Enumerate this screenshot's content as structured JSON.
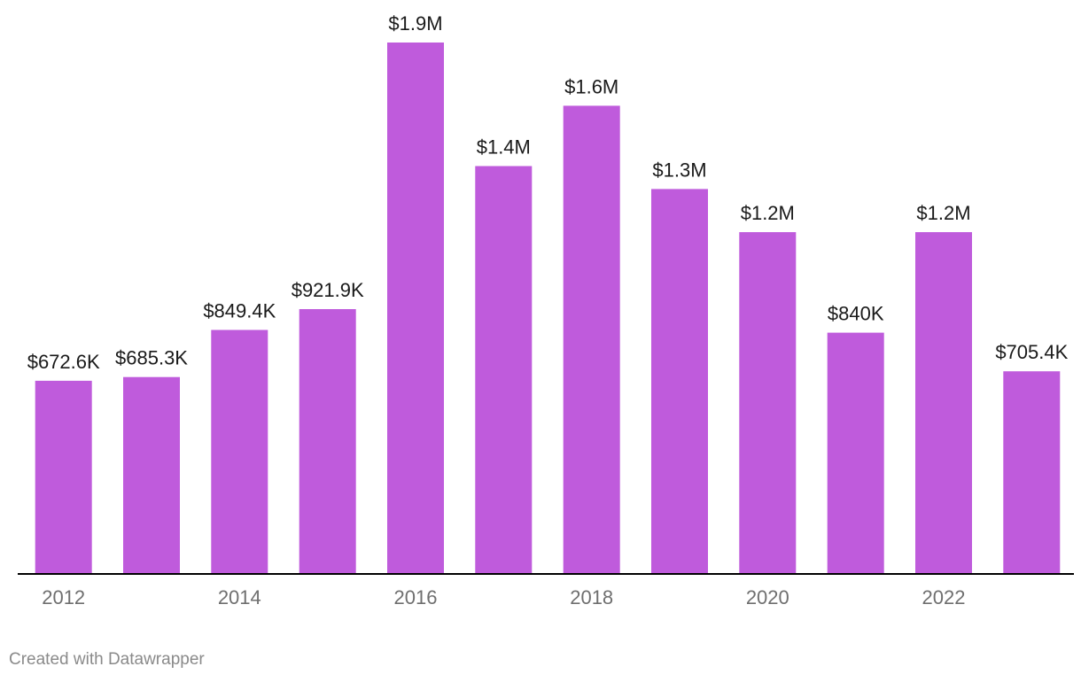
{
  "colors": {
    "bar": "#bf5bdc",
    "axis": "#000000"
  },
  "chart_data": {
    "type": "bar",
    "title": "",
    "xlabel": "",
    "ylabel": "",
    "grid": false,
    "categories": [
      "2012",
      "2013",
      "2014",
      "2015",
      "2016",
      "2017",
      "2018",
      "2019",
      "2020",
      "2021",
      "2022",
      "2023"
    ],
    "values": [
      672600,
      685300,
      849400,
      921900,
      1850000,
      1420000,
      1630000,
      1340000,
      1190000,
      840000,
      1190000,
      705400
    ],
    "data_labels": [
      "$672.6K",
      "$685.3K",
      "$849.4K",
      "$921.9K",
      "$1.9M",
      "$1.4M",
      "$1.6M",
      "$1.3M",
      "$1.2M",
      "$840K",
      "$1.2M",
      "$705.4K"
    ],
    "x_tick_labels": [
      "2012",
      "",
      "2014",
      "",
      "2016",
      "",
      "2018",
      "",
      "2020",
      "",
      "2022",
      ""
    ],
    "ylim": [
      0,
      1850000
    ]
  },
  "footer": {
    "credit": "Created with Datawrapper"
  }
}
